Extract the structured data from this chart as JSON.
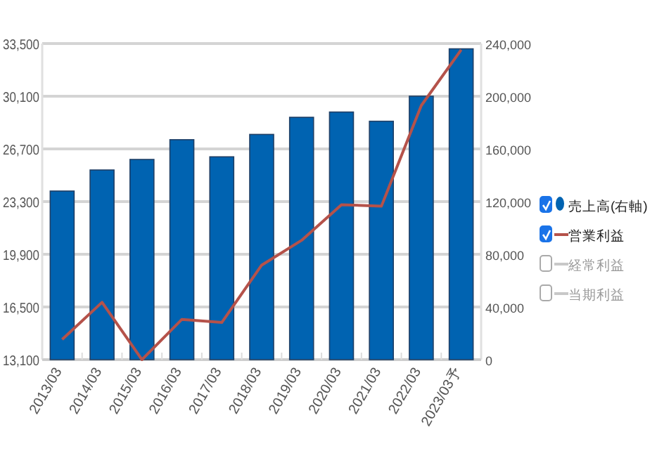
{
  "chart_data": {
    "type": "bar",
    "categories": [
      "2013/03",
      "2014/03",
      "2015/03",
      "2016/03",
      "2017/03",
      "2018/03",
      "2019/03",
      "2020/03",
      "2021/03",
      "2022/03",
      "2023/03予"
    ],
    "series": [
      {
        "name": "売上高(右軸)",
        "axis": "y2",
        "color": "#0063b1",
        "values": [
          128000,
          144000,
          152000,
          167000,
          154000,
          171000,
          184000,
          188000,
          181000,
          200000,
          236000
        ]
      },
      {
        "name": "営業利益",
        "type": "line",
        "color": "#b5524a",
        "values": [
          14400,
          16800,
          13100,
          15700,
          15500,
          19200,
          20800,
          23100,
          23000,
          29500,
          33100
        ]
      },
      {
        "name": "経常利益",
        "type": "line",
        "color": "#c8c8c8",
        "values": [
          null,
          null,
          null,
          null,
          null,
          null,
          null,
          null,
          null,
          null,
          null
        ]
      },
      {
        "name": "当期利益",
        "type": "line",
        "color": "#c8c8c8",
        "values": [
          null,
          null,
          null,
          null,
          null,
          null,
          null,
          null,
          null,
          null,
          null
        ]
      }
    ],
    "ylim": [
      13100,
      33500
    ],
    "yticks": [
      {
        "value": 13100,
        "label": "13,100"
      },
      {
        "value": 16500,
        "label": "16,500"
      },
      {
        "value": 19900,
        "label": "19,900"
      },
      {
        "value": 23300,
        "label": "23,300"
      },
      {
        "value": 26700,
        "label": "26,700"
      },
      {
        "value": 30100,
        "label": "30,100"
      },
      {
        "value": 33500,
        "label": "33,500"
      }
    ],
    "y2lim": [
      0,
      240000
    ],
    "y2ticks": [
      0,
      {
        "value": 40000,
        "label": "40,000"
      },
      {
        "value": 80000,
        "label": "80,000"
      },
      {
        "value": 120000,
        "label": "120,000"
      },
      {
        "value": 160000,
        "label": "160,000"
      },
      {
        "value": 200000,
        "label": "200,000"
      },
      {
        "value": 240000,
        "label": "240,000"
      }
    ],
    "grid": "y",
    "legend": "right"
  }
}
